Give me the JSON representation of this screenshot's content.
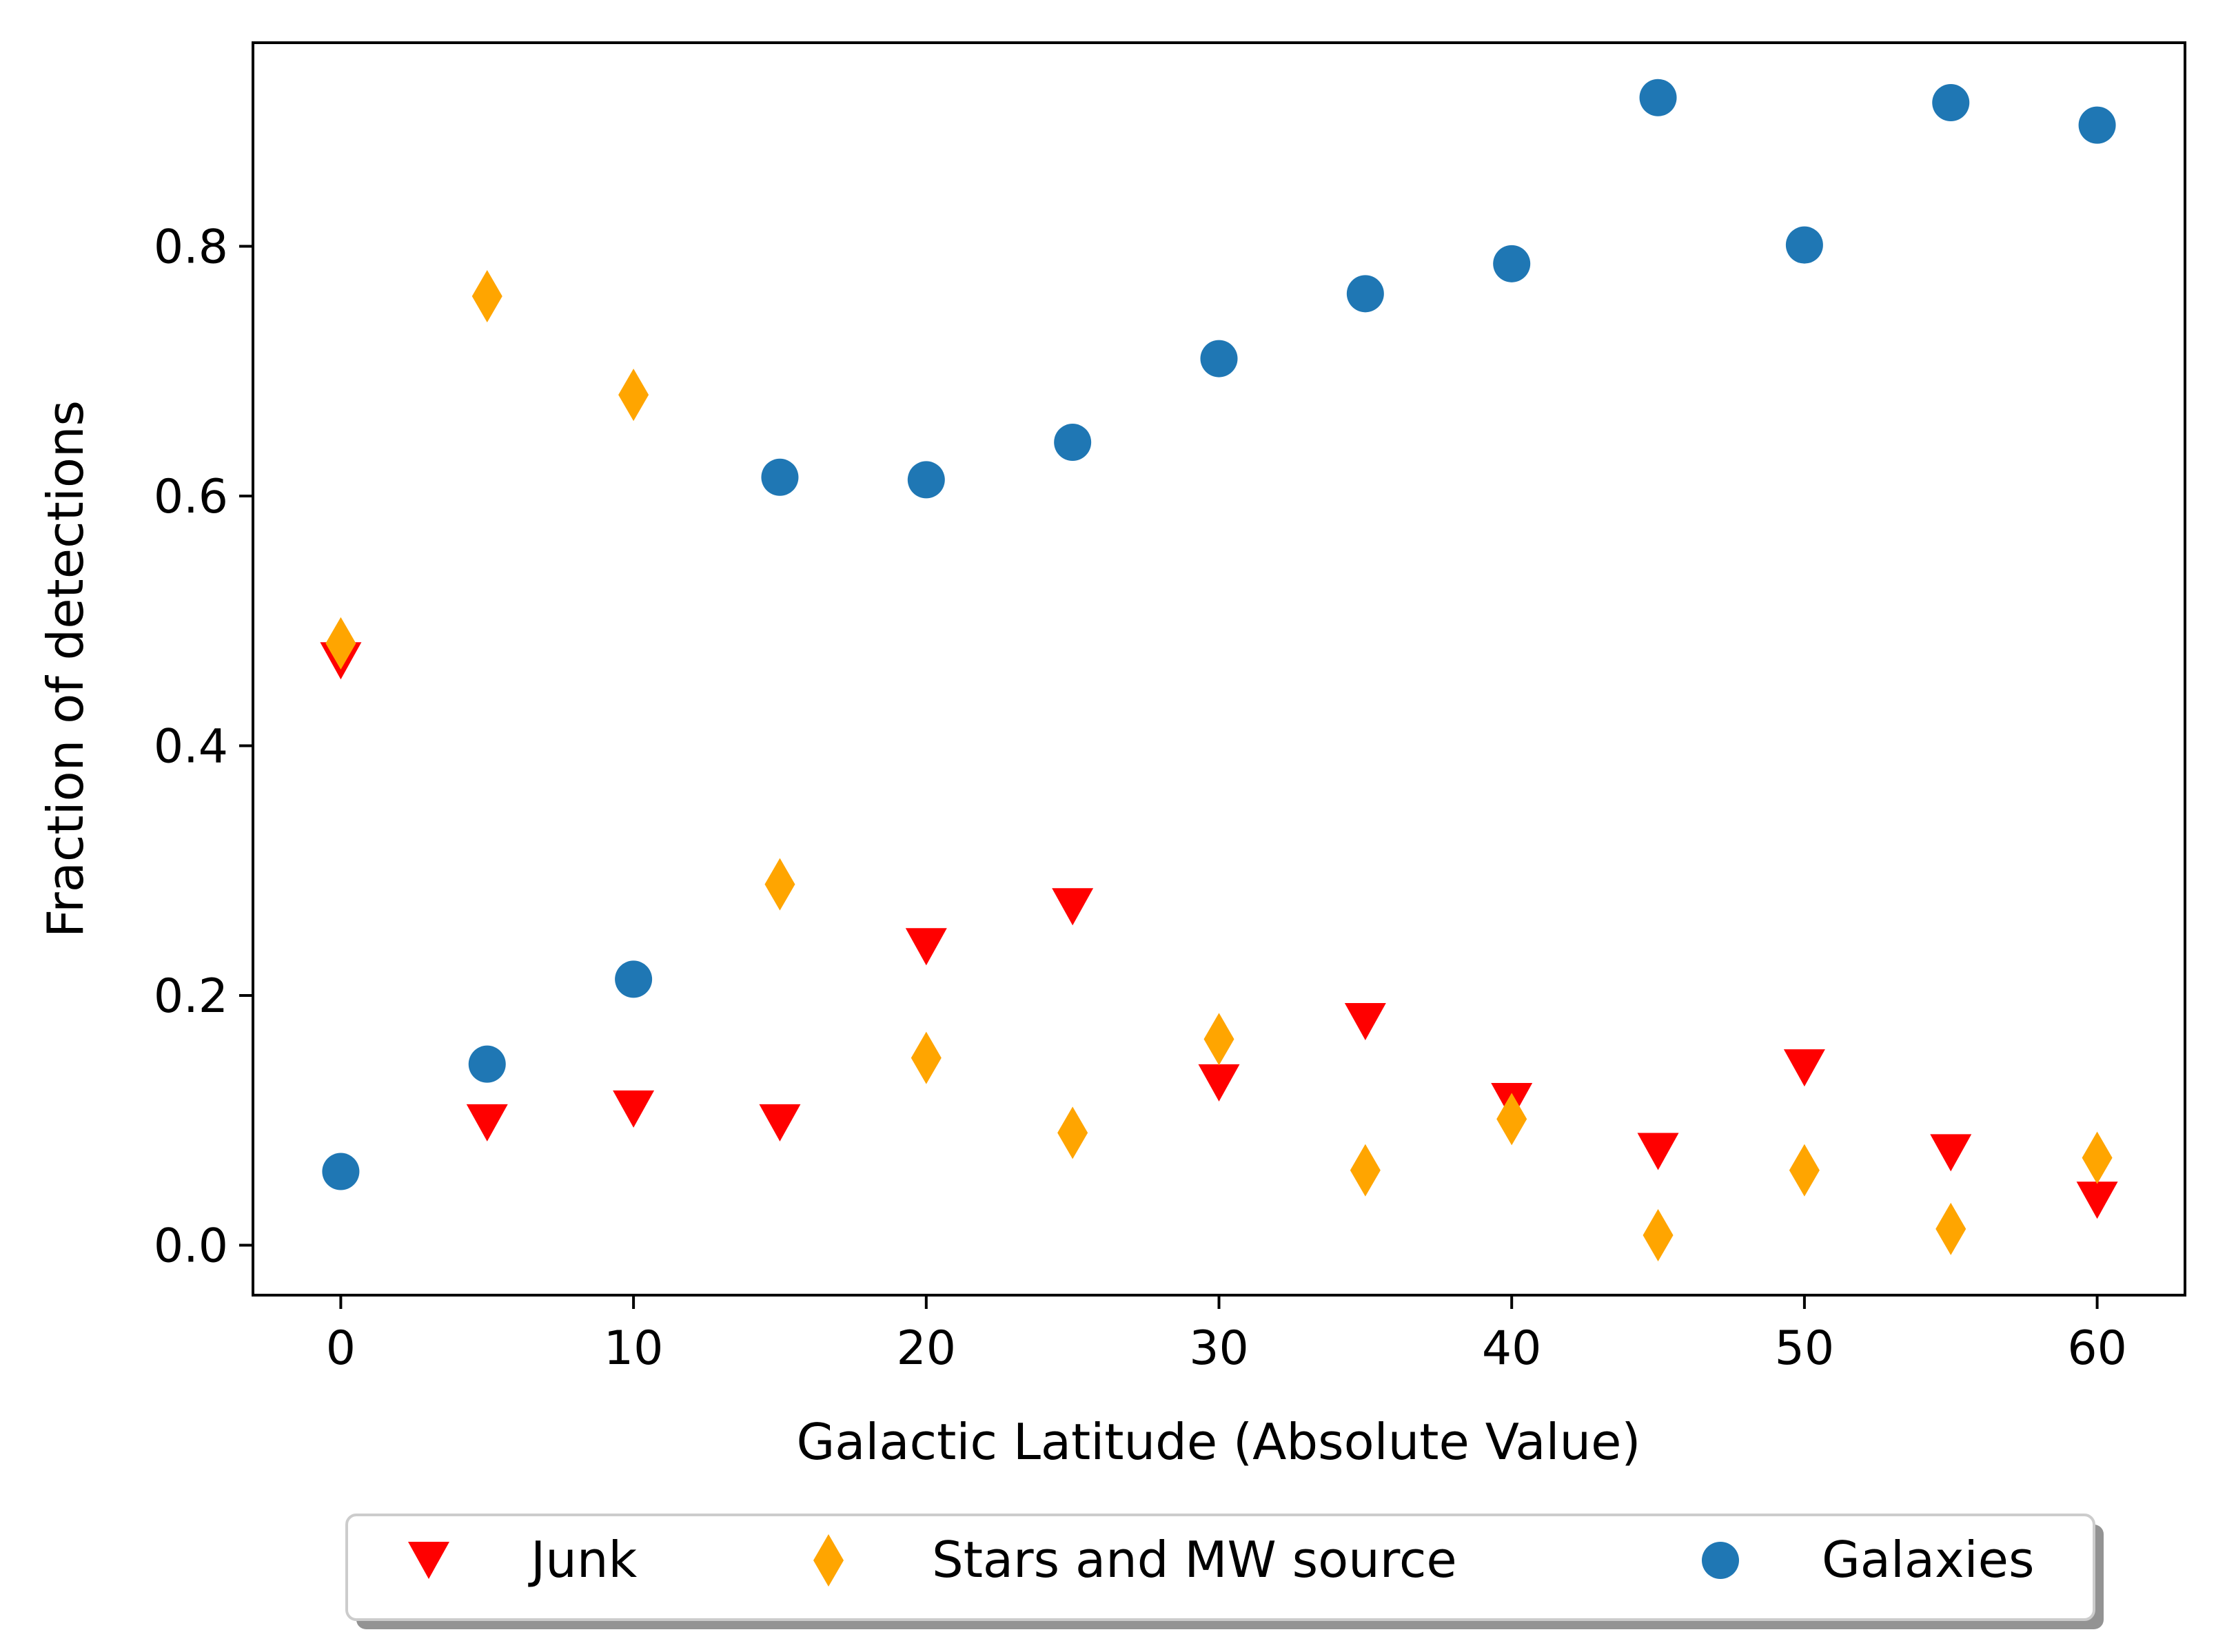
{
  "chart_data": {
    "type": "scatter",
    "xlabel": "Galactic Latitude (Absolute Value)",
    "ylabel": "Fraction of detections",
    "xlim": [
      -3,
      63
    ],
    "ylim": [
      -0.04,
      0.963
    ],
    "xticks": [
      0,
      10,
      20,
      30,
      40,
      50,
      60
    ],
    "xtick_labels": [
      "0",
      "10",
      "20",
      "30",
      "40",
      "50",
      "60"
    ],
    "yticks": [
      0.0,
      0.2,
      0.4,
      0.6,
      0.8
    ],
    "ytick_labels": [
      "0.0",
      "0.2",
      "0.4",
      "0.6",
      "0.8"
    ],
    "grid": false,
    "legend_placement": "bottom-center-outside",
    "series": [
      {
        "name": "Junk",
        "marker": "triangle-down",
        "color": "#ff0000",
        "x": [
          0,
          5,
          10,
          15,
          20,
          25,
          30,
          35,
          40,
          45,
          50,
          55,
          60
        ],
        "y": [
          0.468,
          0.098,
          0.109,
          0.098,
          0.239,
          0.271,
          0.13,
          0.179,
          0.115,
          0.075,
          0.142,
          0.074,
          0.036
        ]
      },
      {
        "name": "Stars and MW source",
        "marker": "diamond",
        "color": "#ffa500",
        "x": [
          0,
          5,
          10,
          15,
          20,
          25,
          30,
          35,
          40,
          45,
          50,
          55,
          60
        ],
        "y": [
          0.482,
          0.76,
          0.681,
          0.289,
          0.15,
          0.09,
          0.165,
          0.06,
          0.101,
          0.008,
          0.06,
          0.013,
          0.07
        ]
      },
      {
        "name": "Galaxies",
        "marker": "circle",
        "color": "#1f77b4",
        "x": [
          0,
          5,
          10,
          15,
          20,
          25,
          30,
          35,
          40,
          45,
          50,
          55,
          60
        ],
        "y": [
          0.059,
          0.145,
          0.213,
          0.615,
          0.613,
          0.643,
          0.71,
          0.762,
          0.786,
          0.919,
          0.801,
          0.915,
          0.897
        ]
      }
    ]
  }
}
